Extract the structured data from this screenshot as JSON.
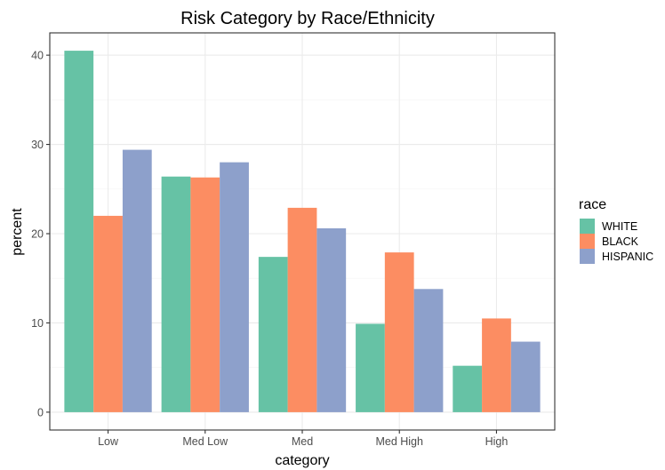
{
  "chart_data": {
    "type": "bar",
    "title": "Risk Category by Race/Ethnicity",
    "xlabel": "category",
    "ylabel": "percent",
    "categories": [
      "Low",
      "Med Low",
      "Med",
      "Med High",
      "High"
    ],
    "series": [
      {
        "name": "WHITE",
        "values": [
          40.5,
          26.4,
          17.4,
          9.9,
          5.2
        ],
        "color": "#66C2A5"
      },
      {
        "name": "BLACK",
        "values": [
          22.0,
          26.3,
          22.9,
          17.9,
          10.5
        ],
        "color": "#FC8D62"
      },
      {
        "name": "HISPANIC",
        "values": [
          29.4,
          28.0,
          20.6,
          13.8,
          7.9
        ],
        "color": "#8DA0CB"
      }
    ],
    "yticks": [
      0,
      10,
      20,
      30,
      40
    ],
    "ylim": [
      -2.0,
      42.5
    ],
    "grid": true,
    "legend": {
      "title": "race",
      "position": "right"
    }
  }
}
